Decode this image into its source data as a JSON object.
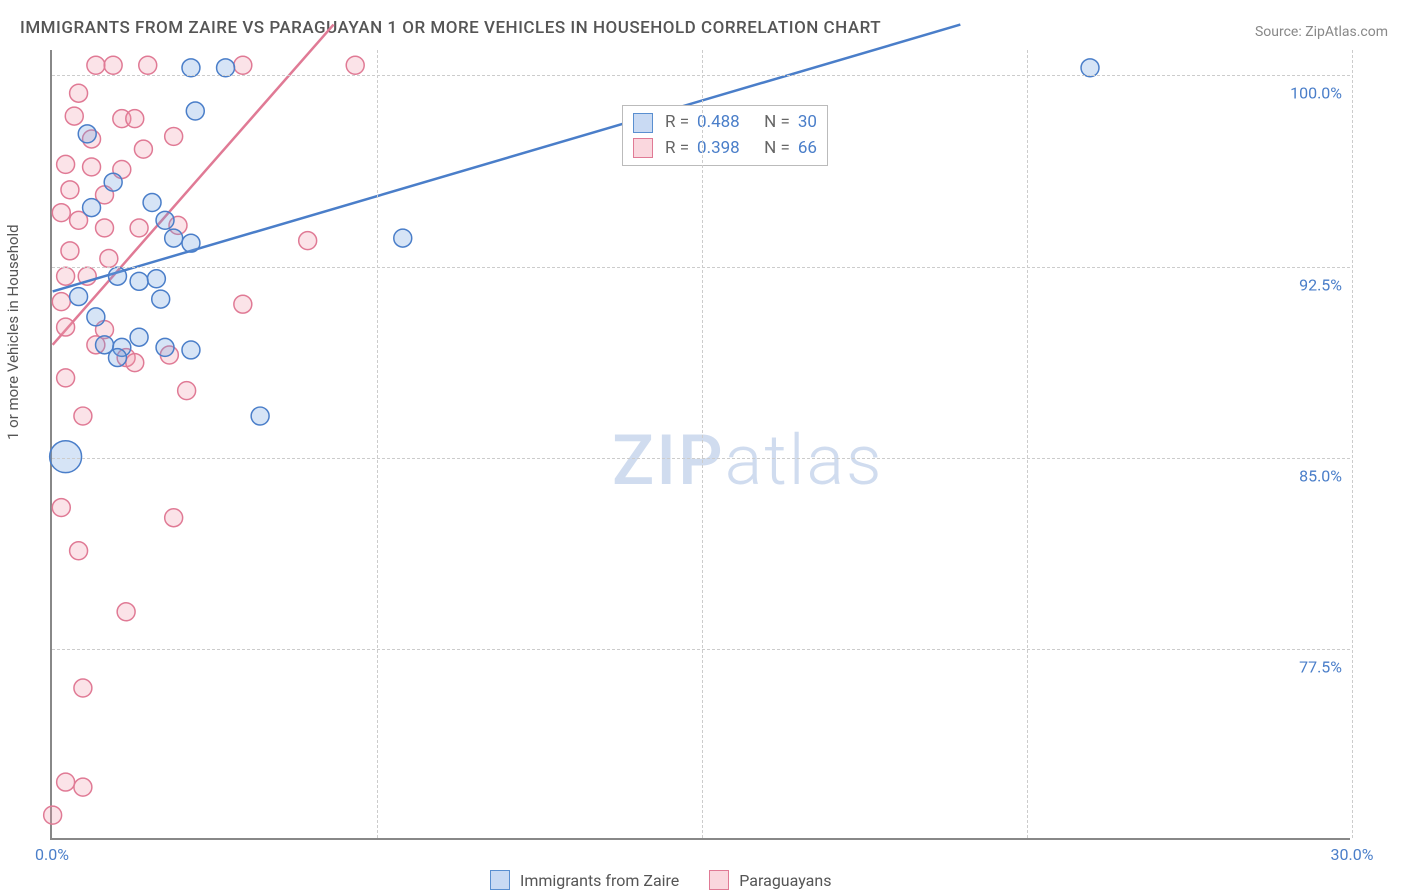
{
  "title": "IMMIGRANTS FROM ZAIRE VS PARAGUAYAN 1 OR MORE VEHICLES IN HOUSEHOLD CORRELATION CHART",
  "source": "Source: ZipAtlas.com",
  "y_axis_label": "1 or more Vehicles in Household",
  "watermark_a": "ZIP",
  "watermark_b": "atlas",
  "chart": {
    "type": "scatter",
    "xlim": [
      0,
      30
    ],
    "ylim": [
      70,
      101
    ],
    "x_ticks": [
      {
        "val": 0.0,
        "label": "0.0%"
      },
      {
        "val": 30.0,
        "label": "30.0%"
      }
    ],
    "y_ticks": [
      {
        "val": 77.5,
        "label": "77.5%"
      },
      {
        "val": 85.0,
        "label": "85.0%"
      },
      {
        "val": 92.5,
        "label": "92.5%"
      },
      {
        "val": 100.0,
        "label": "100.0%"
      }
    ],
    "x_grid_vals": [
      7.5,
      15.0,
      22.5,
      30.0
    ],
    "background_color": "#ffffff",
    "grid_color": "#cccccc",
    "axis_color": "#888888",
    "tick_label_color": "#4a7ec9",
    "trend_line_width": 2.5,
    "marker_radius": 9,
    "marker_stroke_width": 1.5,
    "marker_fill_opacity": 0.28
  },
  "series": [
    {
      "name": "Immigrants from Zaire",
      "key": "zaire",
      "fill_color": "#6a9de0",
      "stroke_color": "#4a7ec9",
      "R": "0.488",
      "N": "30",
      "trend_start": {
        "x": 0,
        "y": 91.5
      },
      "trend_end": {
        "x": 21.0,
        "y": 102.0
      },
      "points": [
        {
          "x": 0.3,
          "y": 85.0,
          "r": 16
        },
        {
          "x": 3.2,
          "y": 100.3
        },
        {
          "x": 4.0,
          "y": 100.3
        },
        {
          "x": 24.0,
          "y": 100.3
        },
        {
          "x": 3.3,
          "y": 98.6
        },
        {
          "x": 0.8,
          "y": 97.7
        },
        {
          "x": 1.4,
          "y": 95.8
        },
        {
          "x": 0.9,
          "y": 94.8
        },
        {
          "x": 2.3,
          "y": 95.0
        },
        {
          "x": 2.6,
          "y": 94.3
        },
        {
          "x": 2.8,
          "y": 93.6
        },
        {
          "x": 3.2,
          "y": 93.4
        },
        {
          "x": 8.1,
          "y": 93.6
        },
        {
          "x": 1.5,
          "y": 92.1
        },
        {
          "x": 2.4,
          "y": 92.0
        },
        {
          "x": 2.0,
          "y": 91.9
        },
        {
          "x": 0.6,
          "y": 91.3
        },
        {
          "x": 2.5,
          "y": 91.2
        },
        {
          "x": 1.0,
          "y": 90.5
        },
        {
          "x": 2.0,
          "y": 89.7
        },
        {
          "x": 1.2,
          "y": 89.4
        },
        {
          "x": 1.6,
          "y": 89.3
        },
        {
          "x": 2.6,
          "y": 89.3
        },
        {
          "x": 1.5,
          "y": 88.9
        },
        {
          "x": 3.2,
          "y": 89.2
        },
        {
          "x": 4.8,
          "y": 86.6
        }
      ]
    },
    {
      "name": "Paraguayans",
      "key": "paraguayans",
      "fill_color": "#f09aad",
      "stroke_color": "#e07a95",
      "R": "0.398",
      "N": "66",
      "trend_start": {
        "x": 0,
        "y": 89.4
      },
      "trend_end": {
        "x": 6.5,
        "y": 102.0
      },
      "points": [
        {
          "x": 1.0,
          "y": 100.4
        },
        {
          "x": 1.4,
          "y": 100.4
        },
        {
          "x": 2.2,
          "y": 100.4
        },
        {
          "x": 4.4,
          "y": 100.4
        },
        {
          "x": 7.0,
          "y": 100.4
        },
        {
          "x": 0.6,
          "y": 99.3
        },
        {
          "x": 0.5,
          "y": 98.4
        },
        {
          "x": 1.6,
          "y": 98.3
        },
        {
          "x": 1.9,
          "y": 98.3
        },
        {
          "x": 0.9,
          "y": 97.5
        },
        {
          "x": 2.8,
          "y": 97.6
        },
        {
          "x": 2.1,
          "y": 97.1
        },
        {
          "x": 0.3,
          "y": 96.5
        },
        {
          "x": 0.9,
          "y": 96.4
        },
        {
          "x": 1.6,
          "y": 96.3
        },
        {
          "x": 0.4,
          "y": 95.5
        },
        {
          "x": 1.2,
          "y": 95.3
        },
        {
          "x": 0.2,
          "y": 94.6
        },
        {
          "x": 0.6,
          "y": 94.3
        },
        {
          "x": 1.2,
          "y": 94.0
        },
        {
          "x": 2.0,
          "y": 94.0
        },
        {
          "x": 2.9,
          "y": 94.1
        },
        {
          "x": 5.9,
          "y": 93.5
        },
        {
          "x": 0.4,
          "y": 93.1
        },
        {
          "x": 1.3,
          "y": 92.8
        },
        {
          "x": 0.3,
          "y": 92.1
        },
        {
          "x": 0.8,
          "y": 92.1
        },
        {
          "x": 0.2,
          "y": 91.1
        },
        {
          "x": 4.4,
          "y": 91.0
        },
        {
          "x": 0.3,
          "y": 90.1
        },
        {
          "x": 1.2,
          "y": 90.0
        },
        {
          "x": 1.0,
          "y": 89.4
        },
        {
          "x": 1.7,
          "y": 88.9
        },
        {
          "x": 2.7,
          "y": 89.0
        },
        {
          "x": 1.9,
          "y": 88.7
        },
        {
          "x": 0.3,
          "y": 88.1
        },
        {
          "x": 3.1,
          "y": 87.6
        },
        {
          "x": 0.7,
          "y": 86.6
        },
        {
          "x": 0.2,
          "y": 83.0
        },
        {
          "x": 2.8,
          "y": 82.6
        },
        {
          "x": 0.6,
          "y": 81.3
        },
        {
          "x": 1.7,
          "y": 78.9
        },
        {
          "x": 0.7,
          "y": 75.9
        },
        {
          "x": 0.3,
          "y": 72.2
        },
        {
          "x": 0.7,
          "y": 72.0
        },
        {
          "x": 0.0,
          "y": 70.9
        }
      ]
    }
  ],
  "stats_box": {
    "col1_label": "R =",
    "col2_label": "N ="
  },
  "legend": {
    "series1": "Immigrants from Zaire",
    "series2": "Paraguayans"
  }
}
